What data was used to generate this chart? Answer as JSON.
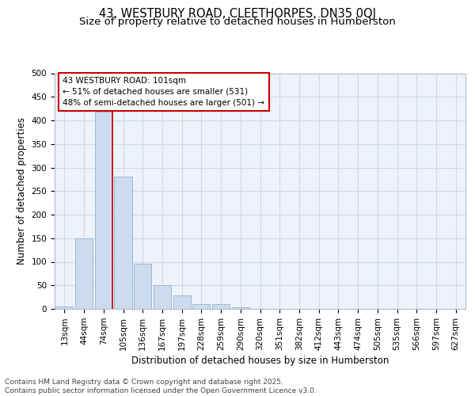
{
  "title": "43, WESTBURY ROAD, CLEETHORPES, DN35 0QJ",
  "subtitle": "Size of property relative to detached houses in Humberston",
  "xlabel": "Distribution of detached houses by size in Humberston",
  "ylabel": "Number of detached properties",
  "bin_labels": [
    "13sqm",
    "44sqm",
    "74sqm",
    "105sqm",
    "136sqm",
    "167sqm",
    "197sqm",
    "228sqm",
    "259sqm",
    "290sqm",
    "320sqm",
    "351sqm",
    "382sqm",
    "412sqm",
    "443sqm",
    "474sqm",
    "505sqm",
    "535sqm",
    "566sqm",
    "597sqm",
    "627sqm"
  ],
  "bar_values": [
    5,
    150,
    418,
    280,
    96,
    50,
    28,
    10,
    10,
    3,
    0,
    0,
    0,
    0,
    0,
    0,
    0,
    0,
    0,
    0,
    0
  ],
  "bar_color": "#ccdcee",
  "bar_edgecolor": "#a0b8d0",
  "redline_color": "#cc0000",
  "annotation_text": "43 WESTBURY ROAD: 101sqm\n← 51% of detached houses are smaller (531)\n48% of semi-detached houses are larger (501) →",
  "annotation_box_facecolor": "#ffffff",
  "annotation_box_edgecolor": "#cc0000",
  "ylim": [
    0,
    500
  ],
  "yticks": [
    0,
    50,
    100,
    150,
    200,
    250,
    300,
    350,
    400,
    450,
    500
  ],
  "grid_color": "#ccd8ec",
  "bg_color": "#eef2fa",
  "footer_text": "Contains HM Land Registry data © Crown copyright and database right 2025.\nContains public sector information licensed under the Open Government Licence v3.0.",
  "title_fontsize": 10.5,
  "subtitle_fontsize": 9.5,
  "annotation_fontsize": 7.5,
  "axis_label_fontsize": 8.5,
  "tick_fontsize": 7.5,
  "footer_fontsize": 6.5
}
